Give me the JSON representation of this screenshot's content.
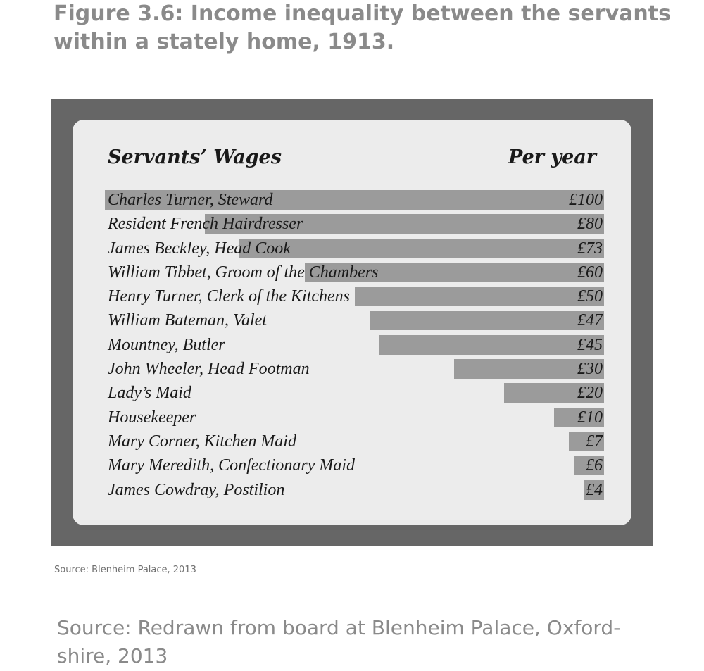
{
  "figure": {
    "title": "Figure 3.6: Income inequality between the servants within a stately home, 1913.",
    "source_small": "Source: Blenheim Palace, 2013",
    "source_large": "Source: Redrawn from board at Blenheim Palace, Oxford-shire, 2013"
  },
  "colors": {
    "frame": "#666666",
    "board": "#ececec",
    "bar": "#9b9b9b",
    "text": "#1a1a1a",
    "caption": "#8a8a8a"
  },
  "chart_data": {
    "type": "bar",
    "orientation": "horizontal",
    "title": "Servants’ Wages",
    "value_header": "Per year",
    "unit": "£",
    "xlim": [
      0,
      100
    ],
    "categories": [
      "Charles Turner, Steward",
      "Resident French Hairdresser",
      "James Beckley, Head Cook",
      "William Tibbet, Groom of the Chambers",
      "Henry Turner, Clerk of the Kitchens",
      "William Bateman, Valet",
      "Mountney, Butler",
      "John Wheeler, Head Footman",
      "Lady’s Maid",
      "Housekeeper",
      "Mary Corner, Kitchen Maid",
      "Mary Meredith, Confectionary Maid",
      "James Cowdray, Postilion"
    ],
    "values": [
      100,
      80,
      73,
      60,
      50,
      47,
      45,
      30,
      20,
      10,
      7,
      6,
      4
    ],
    "value_labels": [
      "£100",
      "£80",
      "£73",
      "£60",
      "£50",
      "£47",
      "£45",
      "£30",
      "£20",
      "£10",
      "£7",
      "£6",
      "£4"
    ]
  }
}
